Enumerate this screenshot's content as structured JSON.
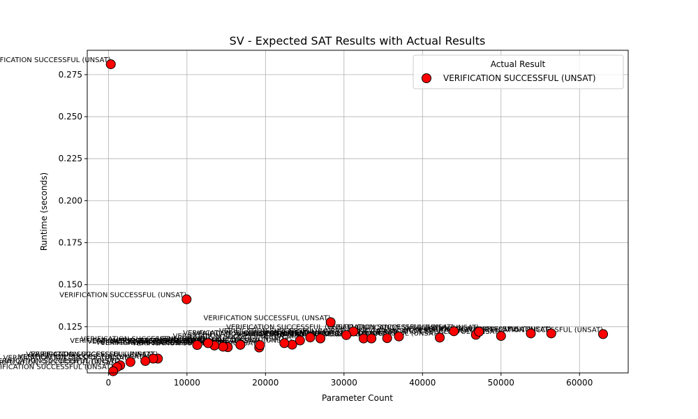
{
  "chart_data": {
    "type": "scatter",
    "title": "SV - Expected SAT Results with Actual Results",
    "xlabel": "Parameter Count",
    "ylabel": "Runtime (seconds)",
    "xlim": [
      -2700,
      66200
    ],
    "ylim": [
      0.0975,
      0.2895
    ],
    "x_ticks": [
      0,
      10000,
      20000,
      30000,
      40000,
      50000,
      60000
    ],
    "y_ticks": [
      0.125,
      0.15,
      0.175,
      0.2,
      0.225,
      0.25,
      0.275
    ],
    "x_tick_labels": [
      "0",
      "10000",
      "20000",
      "30000",
      "40000",
      "50000",
      "60000"
    ],
    "y_tick_labels": [
      "0.125",
      "0.150",
      "0.175",
      "0.200",
      "0.225",
      "0.250",
      "0.275"
    ],
    "grid": true,
    "legend": {
      "title": "Actual Result",
      "placement": "upper-right",
      "entries": [
        "VERIFICATION SUCCESSFUL (UNSAT)"
      ]
    },
    "marker_color": "#ff0000",
    "marker_edge_color": "#000000",
    "point_label": "VERIFICATION SUCCESSFUL (UNSAT)",
    "points": [
      {
        "x": 300,
        "y": 0.2812
      },
      {
        "x": 9950,
        "y": 0.1413
      },
      {
        "x": 28300,
        "y": 0.1277
      },
      {
        "x": 31200,
        "y": 0.1222
      },
      {
        "x": 30300,
        "y": 0.12
      },
      {
        "x": 32500,
        "y": 0.118
      },
      {
        "x": 33500,
        "y": 0.118
      },
      {
        "x": 35500,
        "y": 0.1182
      },
      {
        "x": 37000,
        "y": 0.1192
      },
      {
        "x": 42200,
        "y": 0.1185
      },
      {
        "x": 44000,
        "y": 0.1223
      },
      {
        "x": 46800,
        "y": 0.1202
      },
      {
        "x": 47200,
        "y": 0.122
      },
      {
        "x": 50000,
        "y": 0.1195
      },
      {
        "x": 53800,
        "y": 0.121
      },
      {
        "x": 56400,
        "y": 0.121
      },
      {
        "x": 63000,
        "y": 0.1206
      },
      {
        "x": 27000,
        "y": 0.118
      },
      {
        "x": 25700,
        "y": 0.1186
      },
      {
        "x": 24400,
        "y": 0.1168
      },
      {
        "x": 23400,
        "y": 0.1143
      },
      {
        "x": 22400,
        "y": 0.1152
      },
      {
        "x": 19200,
        "y": 0.1126
      },
      {
        "x": 19300,
        "y": 0.114
      },
      {
        "x": 16800,
        "y": 0.1142
      },
      {
        "x": 15200,
        "y": 0.1128
      },
      {
        "x": 14600,
        "y": 0.1131
      },
      {
        "x": 13500,
        "y": 0.1138
      },
      {
        "x": 11300,
        "y": 0.1141
      },
      {
        "x": 12700,
        "y": 0.1152
      },
      {
        "x": 6300,
        "y": 0.106
      },
      {
        "x": 5700,
        "y": 0.106
      },
      {
        "x": 4700,
        "y": 0.1046
      },
      {
        "x": 2800,
        "y": 0.104
      },
      {
        "x": 1500,
        "y": 0.102
      },
      {
        "x": 1100,
        "y": 0.101
      },
      {
        "x": 600,
        "y": 0.0985
      }
    ]
  }
}
